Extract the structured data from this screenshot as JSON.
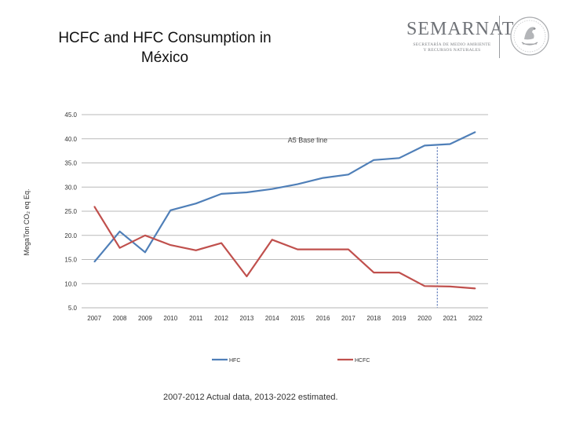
{
  "slide": {
    "title_lines": [
      "HCFC and HFC Consumption in",
      "México"
    ],
    "footnote": "2007-2012 Actual data, 2013-2022 estimated."
  },
  "logo": {
    "word": "SEMARNAT",
    "sub_lines": [
      "SECRETARÍA DE MEDIO AMBIENTE",
      "Y RECURSOS NATURALES"
    ],
    "icon": "mexican-coat-of-arms-seal-icon"
  },
  "chart_data": {
    "type": "line",
    "categories": [
      "2007",
      "2008",
      "2009",
      "2010",
      "2011",
      "2012",
      "2013",
      "2014",
      "2015",
      "2016",
      "2017",
      "2018",
      "2019",
      "2020",
      "2021",
      "2022"
    ],
    "series": [
      {
        "name": "HFC",
        "color": "#4f7fb8",
        "values": [
          14.5,
          20.8,
          16.5,
          25.2,
          26.6,
          28.6,
          28.9,
          29.6,
          30.6,
          31.9,
          32.6,
          35.6,
          36.0,
          38.6,
          38.9,
          41.4
        ]
      },
      {
        "name": "HCFC",
        "color": "#c0504d",
        "values": [
          26.0,
          17.4,
          20.0,
          18.0,
          16.9,
          18.4,
          11.5,
          19.1,
          17.1,
          17.1,
          17.1,
          12.3,
          12.3,
          9.5,
          9.4,
          9.0
        ]
      }
    ],
    "ylabel": "MegaTon CO₂ eq Eq.",
    "xlabel": "",
    "ylim": [
      5,
      45
    ],
    "yticks": [
      "5.0",
      "10.0",
      "15.0",
      "20.0",
      "25.0",
      "30.0",
      "35.0",
      "40.0",
      "45.0"
    ],
    "ytick_values": [
      5,
      10,
      15,
      20,
      25,
      30,
      35,
      40,
      45
    ],
    "grid": true,
    "legend_position": "bottom",
    "annotation": {
      "text": "A5 Base line",
      "marker_at": 2020.5,
      "line_color": "#2e52a6"
    }
  }
}
